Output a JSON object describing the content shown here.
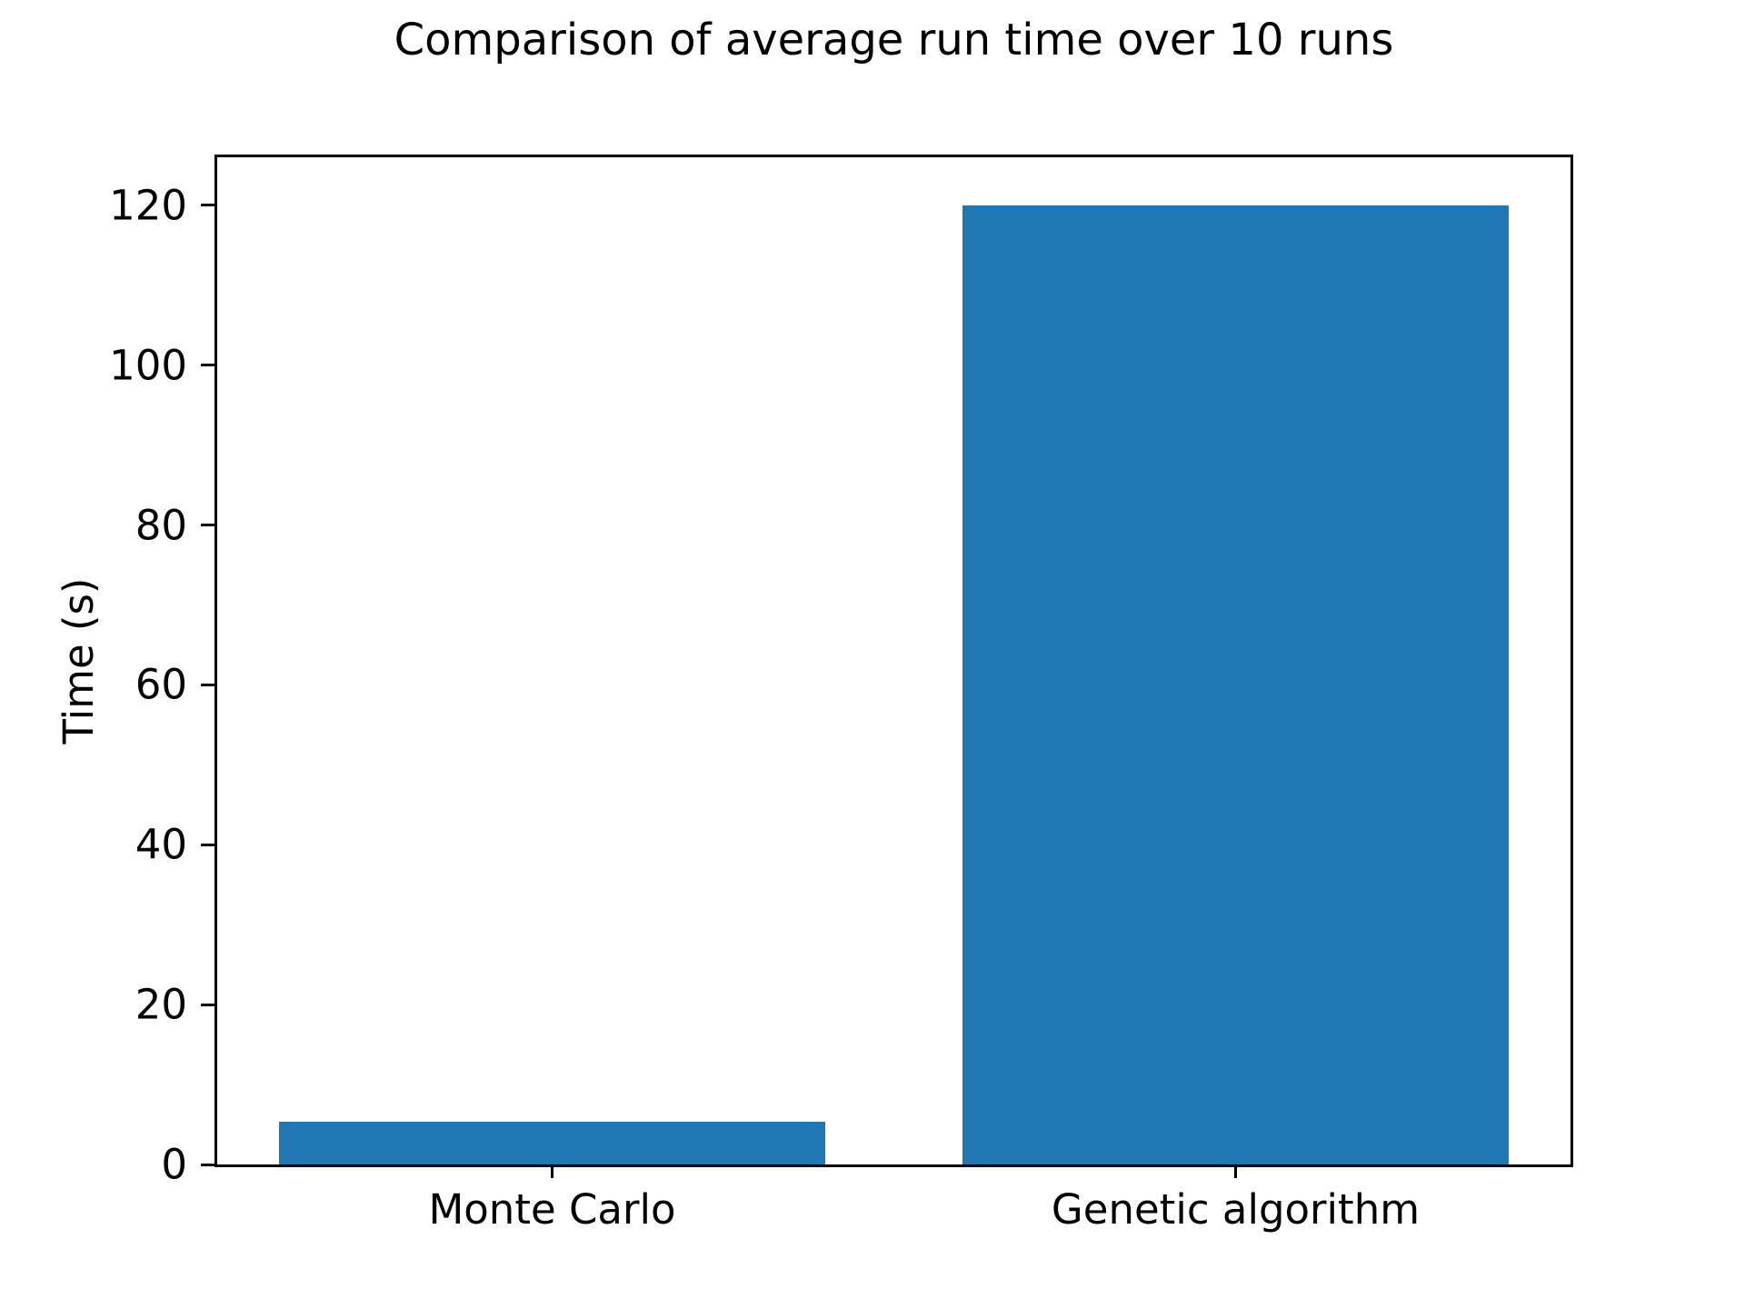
{
  "figure": {
    "background_color": "#ffffff",
    "text_color": "#000000"
  },
  "chart_data": {
    "type": "bar",
    "title": "Comparison of average run time over 10 runs",
    "xlabel": "",
    "ylabel": "Time (s)",
    "categories": [
      "Monte Carlo",
      "Genetic algorithm"
    ],
    "values": [
      5.4,
      120
    ],
    "yticks": [
      0,
      20,
      40,
      60,
      80,
      100,
      120
    ],
    "ylim": [
      0,
      126
    ],
    "bar_color": "#1f77b4",
    "bar_width": 0.8,
    "grid": false,
    "legend": false,
    "frame_box": true
  }
}
